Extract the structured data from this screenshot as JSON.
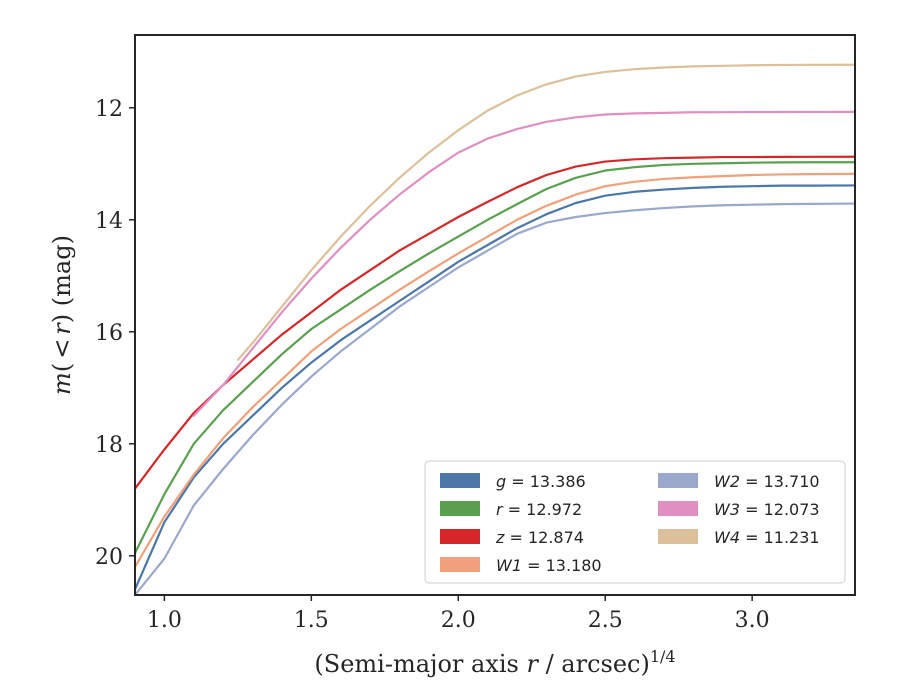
{
  "chart_data": {
    "type": "line",
    "title": "",
    "xlabel_main": "(Semi-major axis ",
    "xlabel_var": "r",
    "xlabel_rest": " / arcsec)",
    "xlabel_sup": "1/4",
    "ylabel_var_m": "m",
    "ylabel_paren_open": "(",
    "ylabel_lt": "<",
    "ylabel_var_r": "r",
    "ylabel_rest": ") (mag)",
    "xlim": [
      0.9,
      3.35
    ],
    "ylim": [
      20.7,
      10.7
    ],
    "y_inverted": true,
    "xticks": [
      1.0,
      1.5,
      2.0,
      2.5,
      3.0
    ],
    "xtick_labels": [
      "1.0",
      "1.5",
      "2.0",
      "2.5",
      "3.0"
    ],
    "yticks": [
      12,
      14,
      16,
      18,
      20
    ],
    "ytick_labels": [
      "12",
      "14",
      "16",
      "18",
      "20"
    ],
    "legend_position": "lower-right",
    "series": [
      {
        "name": "g",
        "value_label": "13.386",
        "color": "#4c78a8",
        "x": [
          0.9,
          1.0,
          1.1,
          1.2,
          1.3,
          1.4,
          1.5,
          1.6,
          1.7,
          1.8,
          1.9,
          2.0,
          2.1,
          2.2,
          2.3,
          2.4,
          2.5,
          2.6,
          2.7,
          2.8,
          2.9,
          3.0,
          3.1,
          3.2,
          3.35
        ],
        "y": [
          20.6,
          19.4,
          18.6,
          18.0,
          17.5,
          17.0,
          16.55,
          16.15,
          15.8,
          15.45,
          15.1,
          14.75,
          14.45,
          14.15,
          13.9,
          13.7,
          13.57,
          13.5,
          13.46,
          13.43,
          13.41,
          13.4,
          13.39,
          13.39,
          13.386
        ]
      },
      {
        "name": "r",
        "value_label": "12.972",
        "color": "#59a14f",
        "x": [
          0.9,
          1.0,
          1.1,
          1.2,
          1.3,
          1.4,
          1.5,
          1.6,
          1.7,
          1.8,
          1.9,
          2.0,
          2.1,
          2.2,
          2.3,
          2.4,
          2.5,
          2.6,
          2.7,
          2.8,
          2.9,
          3.0,
          3.1,
          3.2,
          3.35
        ],
        "y": [
          19.95,
          18.9,
          18.0,
          17.4,
          16.9,
          16.4,
          15.95,
          15.6,
          15.25,
          14.92,
          14.6,
          14.3,
          14.0,
          13.72,
          13.45,
          13.25,
          13.12,
          13.06,
          13.02,
          13.0,
          12.99,
          12.98,
          12.975,
          12.972,
          12.972
        ]
      },
      {
        "name": "z",
        "value_label": "12.874",
        "color": "#d62728",
        "x": [
          0.9,
          1.0,
          1.1,
          1.2,
          1.3,
          1.4,
          1.5,
          1.6,
          1.7,
          1.8,
          1.9,
          2.0,
          2.1,
          2.2,
          2.3,
          2.4,
          2.5,
          2.6,
          2.7,
          2.8,
          2.9,
          3.0,
          3.1,
          3.2,
          3.35
        ],
        "y": [
          18.8,
          18.1,
          17.45,
          16.95,
          16.5,
          16.05,
          15.65,
          15.25,
          14.9,
          14.55,
          14.25,
          13.95,
          13.68,
          13.42,
          13.2,
          13.05,
          12.96,
          12.92,
          12.9,
          12.89,
          12.88,
          12.88,
          12.877,
          12.875,
          12.874
        ]
      },
      {
        "name": "W1",
        "value_label": "13.180",
        "color": "#f0a07a",
        "x": [
          0.9,
          1.0,
          1.1,
          1.2,
          1.3,
          1.4,
          1.5,
          1.6,
          1.7,
          1.8,
          1.9,
          2.0,
          2.1,
          2.2,
          2.3,
          2.4,
          2.5,
          2.6,
          2.7,
          2.8,
          2.9,
          3.0,
          3.1,
          3.2,
          3.35
        ],
        "y": [
          20.2,
          19.3,
          18.55,
          17.9,
          17.35,
          16.85,
          16.35,
          15.95,
          15.6,
          15.25,
          14.92,
          14.6,
          14.3,
          14.0,
          13.75,
          13.55,
          13.4,
          13.32,
          13.27,
          13.24,
          13.22,
          13.2,
          13.19,
          13.185,
          13.18
        ]
      },
      {
        "name": "W2",
        "value_label": "13.710",
        "color": "#9aa8cc",
        "x": [
          0.9,
          1.0,
          1.1,
          1.2,
          1.3,
          1.4,
          1.5,
          1.6,
          1.7,
          1.8,
          1.9,
          2.0,
          2.1,
          2.2,
          2.3,
          2.4,
          2.5,
          2.6,
          2.7,
          2.8,
          2.9,
          3.0,
          3.1,
          3.2,
          3.35
        ],
        "y": [
          20.7,
          20.05,
          19.1,
          18.45,
          17.85,
          17.3,
          16.8,
          16.35,
          15.95,
          15.55,
          15.2,
          14.85,
          14.55,
          14.25,
          14.05,
          13.95,
          13.88,
          13.83,
          13.79,
          13.76,
          13.74,
          13.73,
          13.72,
          13.715,
          13.71
        ]
      },
      {
        "name": "W3",
        "value_label": "12.073",
        "color": "#e08fc3",
        "x": [
          1.1,
          1.2,
          1.3,
          1.4,
          1.5,
          1.6,
          1.7,
          1.8,
          1.9,
          2.0,
          2.1,
          2.2,
          2.3,
          2.4,
          2.5,
          2.6,
          2.7,
          2.8,
          2.9,
          3.0,
          3.1,
          3.2,
          3.35
        ],
        "y": [
          17.5,
          16.95,
          16.3,
          15.65,
          15.05,
          14.5,
          14.0,
          13.55,
          13.15,
          12.8,
          12.55,
          12.38,
          12.25,
          12.17,
          12.12,
          12.1,
          12.09,
          12.08,
          12.078,
          12.076,
          12.075,
          12.074,
          12.073
        ]
      },
      {
        "name": "W4",
        "value_label": "11.231",
        "color": "#dcc09a",
        "x": [
          1.25,
          1.3,
          1.4,
          1.5,
          1.6,
          1.7,
          1.8,
          1.9,
          2.0,
          2.1,
          2.2,
          2.3,
          2.4,
          2.5,
          2.6,
          2.7,
          2.8,
          2.9,
          3.0,
          3.1,
          3.2,
          3.35
        ],
        "y": [
          16.5,
          16.2,
          15.55,
          14.9,
          14.3,
          13.75,
          13.25,
          12.8,
          12.4,
          12.05,
          11.78,
          11.58,
          11.44,
          11.36,
          11.31,
          11.28,
          11.26,
          11.25,
          11.24,
          11.235,
          11.232,
          11.231
        ]
      }
    ]
  }
}
